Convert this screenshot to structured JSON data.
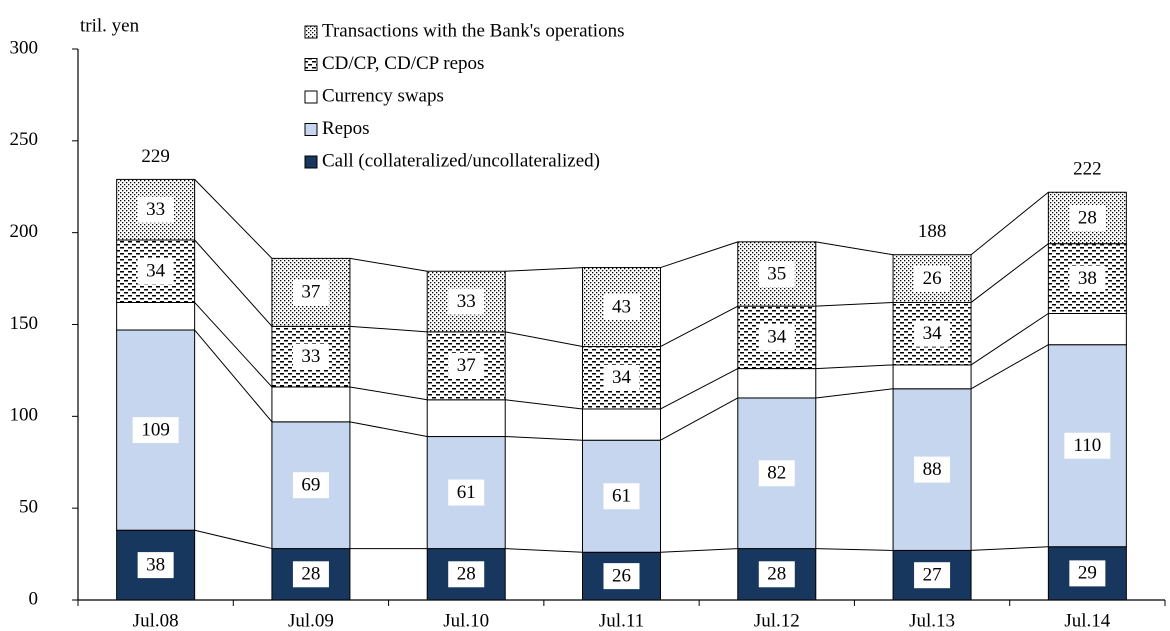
{
  "chart_data": {
    "type": "stacked_bar",
    "y_unit": "tril. yen",
    "categories": [
      "Jul.08",
      "Jul.09",
      "Jul.10",
      "Jul.11",
      "Jul.12",
      "Jul.13",
      "Jul.14"
    ],
    "series": [
      {
        "name": "Call (collateralized/uncollateralized)",
        "color": "#17375e",
        "values": [
          38,
          28,
          28,
          26,
          28,
          27,
          29
        ]
      },
      {
        "name": "Repos",
        "color": "#c5d6ee",
        "values": [
          109,
          69,
          61,
          61,
          82,
          88,
          110
        ]
      },
      {
        "name": "Currency swaps",
        "color": "#ffffff",
        "labels": false,
        "values": [
          15,
          19,
          20,
          17,
          16,
          13,
          17
        ]
      },
      {
        "name": "CD/CP, CD/CP repos",
        "color": "#ffffff",
        "pattern": "dashes",
        "values": [
          34,
          33,
          37,
          34,
          34,
          34,
          38
        ]
      },
      {
        "name": "Transactions with the Bank's operations",
        "color": "#ffffff",
        "pattern": "dots",
        "values": [
          33,
          37,
          33,
          43,
          35,
          26,
          28
        ]
      }
    ],
    "totals": [
      229,
      null,
      null,
      null,
      null,
      188,
      222
    ],
    "ylim": [
      0,
      300
    ],
    "yticks": [
      0,
      50,
      100,
      150,
      200,
      250,
      300
    ]
  }
}
